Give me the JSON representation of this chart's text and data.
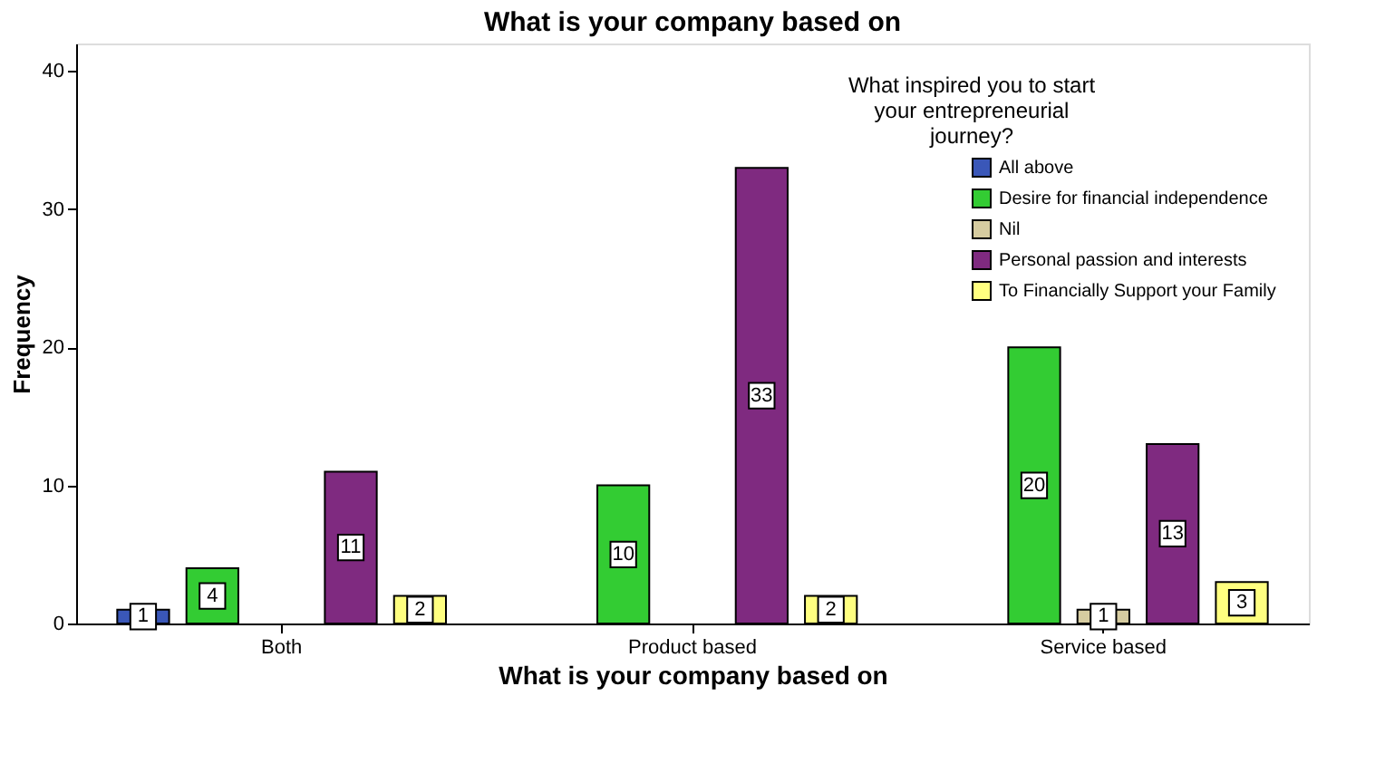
{
  "chart_data": {
    "type": "bar",
    "title": "What is your company based on",
    "xlabel": "What is your company based on",
    "ylabel": "Frequency",
    "legend_title": "What inspired you to start your entrepreneurial journey?",
    "categories": [
      "Both",
      "Product based",
      "Service based"
    ],
    "series": [
      {
        "name": "All above",
        "color": "#3a57b8",
        "values": [
          1,
          null,
          null
        ]
      },
      {
        "name": "Desire for financial independence",
        "color": "#33cc33",
        "values": [
          4,
          10,
          20
        ]
      },
      {
        "name": "Nil",
        "color": "#d6cca0",
        "values": [
          null,
          null,
          1
        ]
      },
      {
        "name": "Personal passion and interests",
        "color": "#7f2a80",
        "values": [
          11,
          33,
          13
        ]
      },
      {
        "name": "To Financially Support your Family",
        "color": "#ffff80",
        "values": [
          2,
          2,
          3
        ]
      }
    ],
    "ylim": [
      0,
      42
    ],
    "yticks": [
      0,
      10,
      20,
      30,
      40
    ],
    "grid": false,
    "legend": "top right",
    "data_labels": true
  }
}
